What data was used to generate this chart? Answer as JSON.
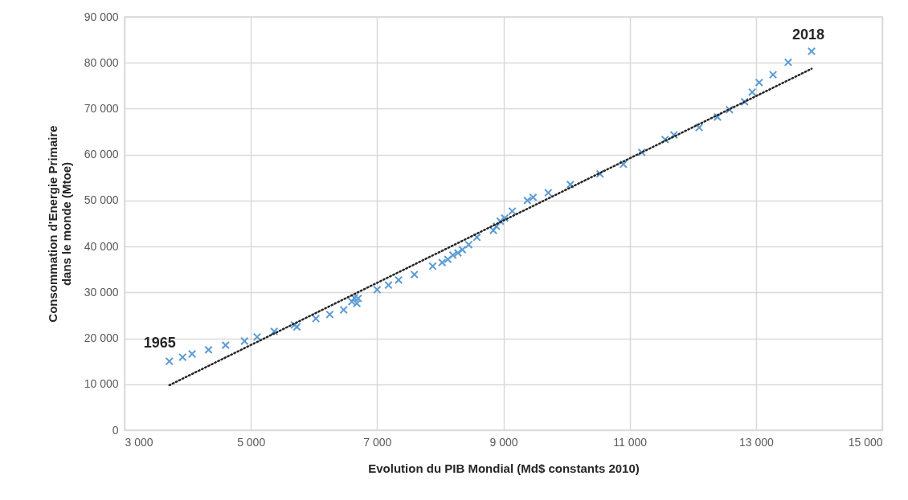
{
  "chart_data": {
    "type": "scatter",
    "xlabel": "Evolution du PIB Mondial (Md$ constants 2010)",
    "ylabel": "Consommation d'Energie Primaire\ndans le monde (Mtoe)",
    "xlim": [
      3000,
      15000
    ],
    "ylim": [
      0,
      90000
    ],
    "xticks": [
      {
        "value": 3000,
        "label": "3 000"
      },
      {
        "value": 5000,
        "label": "5 000"
      },
      {
        "value": 7000,
        "label": "7 000"
      },
      {
        "value": 9000,
        "label": "9 000"
      },
      {
        "value": 11000,
        "label": "11 000"
      },
      {
        "value": 13000,
        "label": "13 000"
      },
      {
        "value": 15000,
        "label": "15 000"
      }
    ],
    "yticks": [
      {
        "value": 0,
        "label": "0"
      },
      {
        "value": 10000,
        "label": "10 000"
      },
      {
        "value": 20000,
        "label": "20 000"
      },
      {
        "value": 30000,
        "label": "30 000"
      },
      {
        "value": 40000,
        "label": "40 000"
      },
      {
        "value": 50000,
        "label": "50 000"
      },
      {
        "value": 60000,
        "label": "60 000"
      },
      {
        "value": 70000,
        "label": "70 000"
      },
      {
        "value": 80000,
        "label": "80 000"
      },
      {
        "value": 90000,
        "label": "90 000"
      }
    ],
    "grid": true,
    "series": [
      {
        "marker": "cross",
        "color": "#5b9bd5",
        "x": [
          3710,
          3920,
          4070,
          4330,
          4600,
          4900,
          5100,
          5370,
          5690,
          5730,
          6030,
          6250,
          6470,
          6600,
          6640,
          6680,
          6700,
          7000,
          7180,
          7340,
          7590,
          7880,
          8030,
          8120,
          8200,
          8280,
          8350,
          8450,
          8580,
          8840,
          8890,
          8950,
          9020,
          9140,
          9380,
          9470,
          9710,
          10060,
          10530,
          10900,
          11190,
          11560,
          11700,
          12100,
          12390,
          12580,
          12820,
          12940,
          13050,
          13270,
          13510,
          13880
        ],
        "values": [
          15000,
          15900,
          16600,
          17500,
          18500,
          19400,
          20300,
          21500,
          22900,
          22500,
          24300,
          25200,
          26200,
          28000,
          28800,
          27600,
          28700,
          30600,
          31600,
          32700,
          33900,
          35700,
          36500,
          37200,
          38100,
          38600,
          39300,
          40400,
          42000,
          43500,
          44400,
          45500,
          46200,
          47700,
          50000,
          50700,
          51700,
          53500,
          55800,
          57900,
          60500,
          63300,
          64300,
          65900,
          68200,
          69800,
          71500,
          73600,
          75700,
          77400,
          80100,
          82500
        ]
      },
      {
        "type": "line",
        "line_style": "dotted",
        "color": "#262626",
        "x": [
          3710,
          13880
        ],
        "values": [
          9800,
          78700
        ]
      }
    ],
    "annotations": [
      {
        "text": "1965",
        "x": 3710,
        "y": 15000
      },
      {
        "text": "2018",
        "x": 13880,
        "y": 82500
      }
    ]
  }
}
